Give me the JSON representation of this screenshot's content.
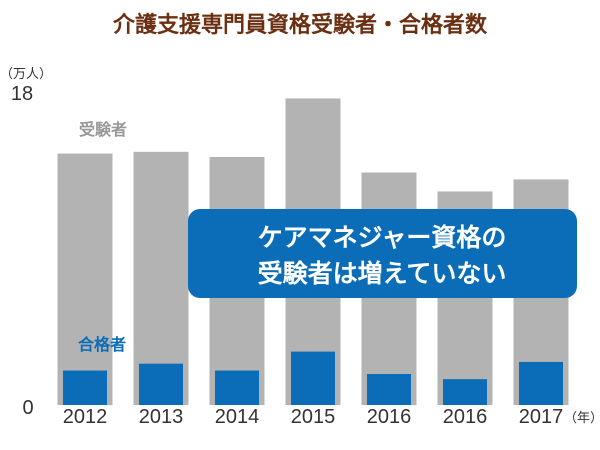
{
  "chart_data": {
    "type": "bar",
    "title": "介護支援専門員資格受験者・合格者数",
    "y_unit_label": "（万人）",
    "x_unit_label": "（年）",
    "y_ticks": [
      "18",
      "0"
    ],
    "ylim": [
      0,
      18
    ],
    "categories": [
      "2012",
      "2013",
      "2014",
      "2015",
      "2016",
      "2016",
      "2017"
    ],
    "series": [
      {
        "name": "受験者",
        "color": "#b3b3b3",
        "label_color": "#999999",
        "values": [
          14.6,
          14.7,
          14.4,
          17.8,
          13.5,
          12.4,
          13.1
        ]
      },
      {
        "name": "合格者",
        "color": "#0b6db7",
        "label_color": "#0b6db7",
        "values": [
          2.0,
          2.4,
          2.0,
          3.1,
          1.8,
          1.5,
          2.5
        ]
      }
    ],
    "annotation": {
      "lines": [
        "ケアマネジャー資格の",
        "受験者は増えていない"
      ],
      "background_color": "#0b6db7",
      "text_color": "#ffffff"
    },
    "grid": false
  }
}
